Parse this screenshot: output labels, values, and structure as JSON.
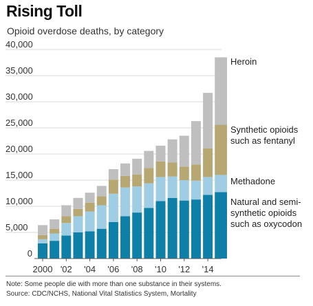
{
  "header": {
    "title": "Rising Toll",
    "subtitle": "Opioid overdose deaths, by category"
  },
  "footer": {
    "note": "Note: Some people die with more than one substance in their systems.",
    "source": "Source: CDC/NCHS, National Vital Statistics System, Mortality"
  },
  "chart_data": {
    "type": "bar",
    "stacked": true,
    "years": [
      2000,
      2001,
      2002,
      2003,
      2004,
      2005,
      2006,
      2007,
      2008,
      2009,
      2010,
      2011,
      2012,
      2013,
      2014,
      2015
    ],
    "x_tick_labels": [
      {
        "year": 2000,
        "label": "2000"
      },
      {
        "year": 2002,
        "label": "'02"
      },
      {
        "year": 2004,
        "label": "'04"
      },
      {
        "year": 2006,
        "label": "'06"
      },
      {
        "year": 2008,
        "label": "'08"
      },
      {
        "year": 2010,
        "label": "'10"
      },
      {
        "year": 2012,
        "label": "'12"
      },
      {
        "year": 2014,
        "label": "'14"
      }
    ],
    "y_ticks": [
      0,
      5000,
      10000,
      15000,
      20000,
      25000,
      30000,
      35000,
      40000
    ],
    "y_tick_labels": [
      "0",
      "5,000",
      "10,000",
      "15,000",
      "20,000",
      "25,000",
      "30,000",
      "35,000",
      "40,000"
    ],
    "ylim": [
      0,
      40000
    ],
    "grid": true,
    "series": [
      {
        "name": "Natural and semi-synthetic opioids such as oxycodone",
        "color": "#0e7fa6",
        "values": [
          2900,
          3400,
          4400,
          5000,
          5200,
          5700,
          7000,
          8100,
          8800,
          9700,
          11000,
          11600,
          11100,
          11300,
          12200,
          12700
        ]
      },
      {
        "name": "Methadone",
        "color": "#9fcde3",
        "values": [
          800,
          1400,
          2400,
          3100,
          3800,
          4500,
          5400,
          5500,
          5000,
          4700,
          4600,
          4100,
          3900,
          3600,
          3400,
          3300
        ]
      },
      {
        "name": "Synthetic opioids such as fentanyl",
        "color": "#b7a873",
        "values": [
          800,
          900,
          1300,
          1400,
          1700,
          1700,
          2700,
          2200,
          2300,
          2900,
          3000,
          2700,
          2600,
          3100,
          5500,
          9600
        ]
      },
      {
        "name": "Heroin",
        "color": "#bfbfbf",
        "values": [
          1900,
          1800,
          2100,
          2100,
          1900,
          2000,
          2000,
          2400,
          3000,
          3300,
          3000,
          4400,
          5900,
          8300,
          10600,
          12900
        ]
      }
    ],
    "legend": [
      {
        "series": 3,
        "lines": [
          "Heroin"
        ]
      },
      {
        "series": 2,
        "lines": [
          "Synthetic opioids",
          "such as fentanyl"
        ]
      },
      {
        "series": 1,
        "lines": [
          "Methadone"
        ]
      },
      {
        "series": 0,
        "lines": [
          "Natural and semi-",
          "synthetic opioids",
          "such as oxycodon"
        ]
      }
    ],
    "legend_placement": "right, aligned with series"
  }
}
